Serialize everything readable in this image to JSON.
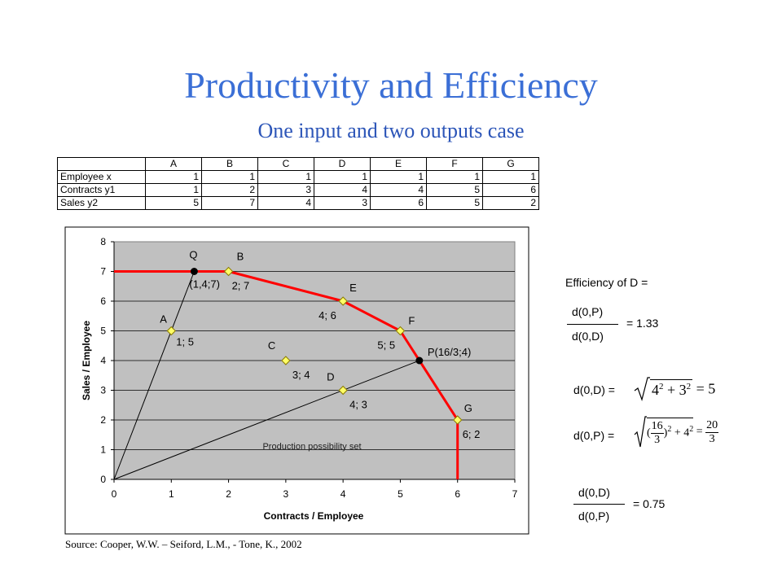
{
  "slide": {
    "title": "Productivity and Efficiency",
    "subtitle": "One input and two outputs case",
    "source": "Source: Cooper, W.W. – Seiford, L.M., - Tone, K., 2002"
  },
  "table": {
    "columns": [
      "A",
      "B",
      "C",
      "D",
      "E",
      "F",
      "G"
    ],
    "rows": [
      {
        "label": "Employee x",
        "values": [
          "1",
          "1",
          "1",
          "1",
          "1",
          "1",
          "1"
        ]
      },
      {
        "label": "Contracts y1",
        "values": [
          "1",
          "2",
          "3",
          "4",
          "4",
          "5",
          "6"
        ]
      },
      {
        "label": "Sales y2",
        "values": [
          "5",
          "7",
          "4",
          "3",
          "6",
          "5",
          "2"
        ]
      }
    ]
  },
  "chart_data": {
    "type": "scatter",
    "xlabel": "Contracts / Employee",
    "ylabel": "Sales / Employee",
    "xlim": [
      0,
      7
    ],
    "ylim": [
      0,
      8
    ],
    "x_ticks": [
      "0",
      "1",
      "2",
      "3",
      "4",
      "5",
      "6",
      "7"
    ],
    "y_ticks": [
      "0",
      "1",
      "2",
      "3",
      "4",
      "5",
      "6",
      "7",
      "8"
    ],
    "grid": true,
    "points": [
      {
        "name": "A",
        "x": 1,
        "y": 5,
        "label": "1; 5"
      },
      {
        "name": "B",
        "x": 2,
        "y": 7,
        "label": "2; 7"
      },
      {
        "name": "C",
        "x": 3,
        "y": 4,
        "label": "3; 4"
      },
      {
        "name": "D",
        "x": 4,
        "y": 3,
        "label": "4; 3"
      },
      {
        "name": "E",
        "x": 4,
        "y": 6,
        "label": "4; 6"
      },
      {
        "name": "F",
        "x": 5,
        "y": 5,
        "label": "5; 5"
      },
      {
        "name": "G",
        "x": 6,
        "y": 2,
        "label": "6; 2"
      }
    ],
    "special_points": [
      {
        "name": "Q",
        "x": 1.4,
        "y": 7,
        "label": "(1,4;7)"
      },
      {
        "name": "P",
        "x": 5.333,
        "y": 4,
        "label": "P(16/3;4)"
      }
    ],
    "frontier": [
      [
        0,
        7
      ],
      [
        2,
        7
      ],
      [
        4,
        6
      ],
      [
        5,
        5
      ],
      [
        6,
        2
      ],
      [
        6,
        0
      ]
    ],
    "rays": [
      [
        [
          0,
          0
        ],
        [
          1.4,
          7
        ]
      ],
      [
        [
          0,
          0
        ],
        [
          5.333,
          4
        ]
      ]
    ],
    "annotation": "Production possibility set",
    "colors": {
      "frontier": "#ff0000",
      "point_fill": "#ffff66",
      "plot_bg": "#c0c0c0",
      "special_point": "#000000"
    }
  },
  "efficiency": {
    "heading": "Efficiency of D =",
    "ratio1_num": "d(0,P)",
    "ratio1_den": "d(0,D)",
    "ratio1_val": "= 1.33",
    "dod_label": "d(0,D) =",
    "dod_formula_a": "4",
    "dod_formula_b": "3",
    "dod_formula_result": "= 5",
    "dop_label": "d(0,P) =",
    "dop_f_num": "16",
    "dop_f_den": "3",
    "dop_plus": "+ 4",
    "dop_res_num": "20",
    "dop_res_den": "3",
    "ratio2_num": "d(0,D)",
    "ratio2_den": "d(0,P)",
    "ratio2_val": "= 0.75"
  }
}
